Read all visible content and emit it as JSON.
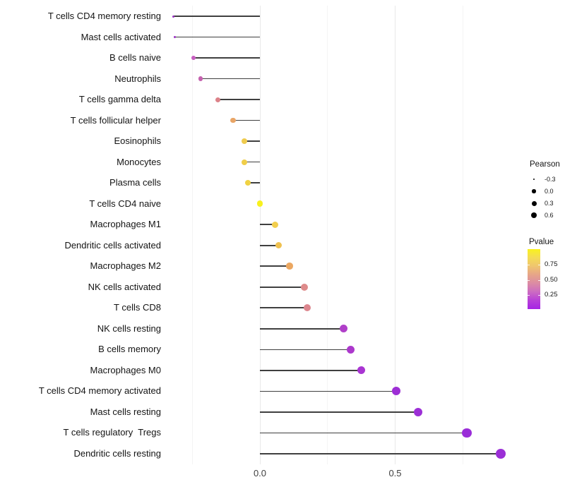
{
  "chart_data": {
    "type": "lollipop",
    "title": "",
    "xlabel": "",
    "ylabel": "",
    "xlim": [
      -0.34,
      0.95
    ],
    "x_ticks": [
      {
        "value": 0.0,
        "label": "0.0"
      },
      {
        "value": 0.5,
        "label": "0.5"
      }
    ],
    "gridlines": {
      "major": [
        0.0,
        0.5
      ],
      "minor": [
        -0.25,
        0.25,
        0.75
      ]
    },
    "legend_position": "right",
    "series_note": "dot size encodes Pearson correlation, dot color encodes Pvalue",
    "rows": [
      {
        "label": "T cells CD4 memory resting",
        "pearson": -0.32,
        "color": "#9C31C4"
      },
      {
        "label": "Mast cells activated",
        "pearson": -0.315,
        "color": "#9C31C4"
      },
      {
        "label": "B cells naive",
        "pearson": -0.245,
        "color": "#C75EC0"
      },
      {
        "label": "Neutrophils",
        "pearson": -0.22,
        "color": "#C561AE"
      },
      {
        "label": "T cells gamma delta",
        "pearson": -0.155,
        "color": "#DC8289"
      },
      {
        "label": "T cells follicular helper",
        "pearson": -0.1,
        "color": "#E9A566"
      },
      {
        "label": "Eosinophils",
        "pearson": -0.058,
        "color": "#EFCB4E"
      },
      {
        "label": "Monocytes",
        "pearson": -0.058,
        "color": "#F0CE48"
      },
      {
        "label": "Plasma cells",
        "pearson": -0.044,
        "color": "#F0D243"
      },
      {
        "label": "T cells CD4 naive",
        "pearson": 0.0,
        "color": "#F8F11E"
      },
      {
        "label": "Macrophages M1",
        "pearson": 0.055,
        "color": "#F2CE4D"
      },
      {
        "label": "Dendritic cells activated",
        "pearson": 0.07,
        "color": "#EFC150"
      },
      {
        "label": "Macrophages M2",
        "pearson": 0.11,
        "color": "#EBA761"
      },
      {
        "label": "NK cells activated",
        "pearson": 0.165,
        "color": "#DE8B8B"
      },
      {
        "label": "T cells CD8",
        "pearson": 0.175,
        "color": "#DC868E"
      },
      {
        "label": "NK cells resting",
        "pearson": 0.31,
        "color": "#B03FC9"
      },
      {
        "label": "B cells memory",
        "pearson": 0.335,
        "color": "#AC38CC"
      },
      {
        "label": "Macrophages M0",
        "pearson": 0.375,
        "color": "#A935D2"
      },
      {
        "label": "T cells CD4 memory activated",
        "pearson": 0.505,
        "color": "#9D2ED5"
      },
      {
        "label": "Mast cells resting",
        "pearson": 0.585,
        "color": "#9C2FD6"
      },
      {
        "label": "T cells regulatory  Tregs",
        "pearson": 0.765,
        "color": "#9A2DD8"
      },
      {
        "label": "Dendritic cells resting",
        "pearson": 0.89,
        "color": "#9B2FD6"
      }
    ]
  },
  "legend": {
    "pearson": {
      "title": "Pearson",
      "items": [
        {
          "label": "-0.3",
          "size": 2.5
        },
        {
          "label": "0.0",
          "size": 5.5
        },
        {
          "label": "0.3",
          "size": 7
        },
        {
          "label": "0.6",
          "size": 8.5
        }
      ]
    },
    "pvalue": {
      "title": "Pvalue",
      "ticks": [
        "0.75",
        "0.50",
        "0.25"
      ],
      "gradient": [
        "#F9F21E",
        "#F4DC55",
        "#EFC46F",
        "#E6A489",
        "#DB8BA4",
        "#CC6BC2",
        "#B73FD8",
        "#A524E4"
      ]
    }
  },
  "colors": {
    "background": "#FFFFFF",
    "stem": "#3F3F3F",
    "grid_major": "#E9E9E9",
    "grid_minor": "#F4F4F4",
    "axis_text": "#404040",
    "label_text": "#141414",
    "legend_key": "#000000"
  }
}
